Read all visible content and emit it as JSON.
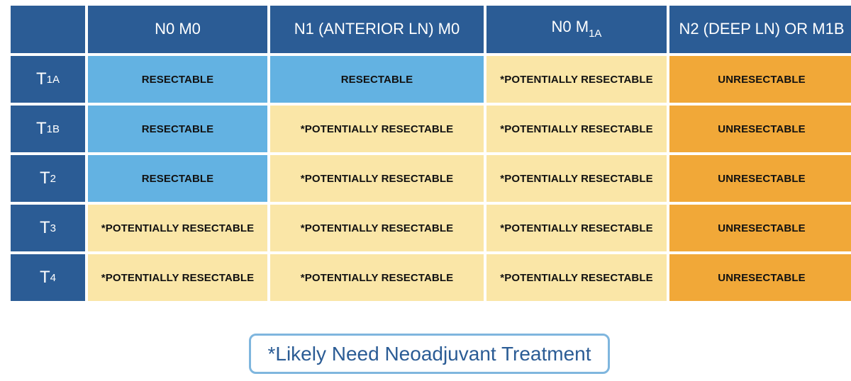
{
  "table": {
    "columns": [
      {
        "label": ""
      },
      {
        "label": "N0 M0"
      },
      {
        "label": "N1 (ANTERIOR LN) M0"
      },
      {
        "label": "N0 M",
        "sub": "1A"
      },
      {
        "label": "N2 (DEEP LN) OR M1B"
      }
    ],
    "rows": [
      {
        "stage": "T",
        "sub": "1A",
        "cells": [
          "RESECTABLE",
          "RESECTABLE",
          "*POTENTIALLY RESECTABLE",
          "UNRESECTABLE"
        ]
      },
      {
        "stage": "T",
        "sub": "1B",
        "cells": [
          "RESECTABLE",
          "*POTENTIALLY RESECTABLE",
          "*POTENTIALLY RESECTABLE",
          "UNRESECTABLE"
        ]
      },
      {
        "stage": "T",
        "sub": "2",
        "cells": [
          "RESECTABLE",
          "*POTENTIALLY RESECTABLE",
          "*POTENTIALLY RESECTABLE",
          "UNRESECTABLE"
        ]
      },
      {
        "stage": "T",
        "sub": "3",
        "cells": [
          "*POTENTIALLY RESECTABLE",
          "*POTENTIALLY RESECTABLE",
          "*POTENTIALLY RESECTABLE",
          "UNRESECTABLE"
        ]
      },
      {
        "stage": "T",
        "sub": "4",
        "cells": [
          "*POTENTIALLY RESECTABLE",
          "*POTENTIALLY RESECTABLE",
          "*POTENTIALLY RESECTABLE",
          "UNRESECTABLE"
        ]
      }
    ]
  },
  "note": "*Likely Need Neoadjuvant Treatment",
  "colors": {
    "header": "#2B5C95",
    "resectable": "#63B2E2",
    "potentially_resectable": "#FAE6A7",
    "unresectable": "#F1A838",
    "note_border": "#7FB6DE"
  }
}
